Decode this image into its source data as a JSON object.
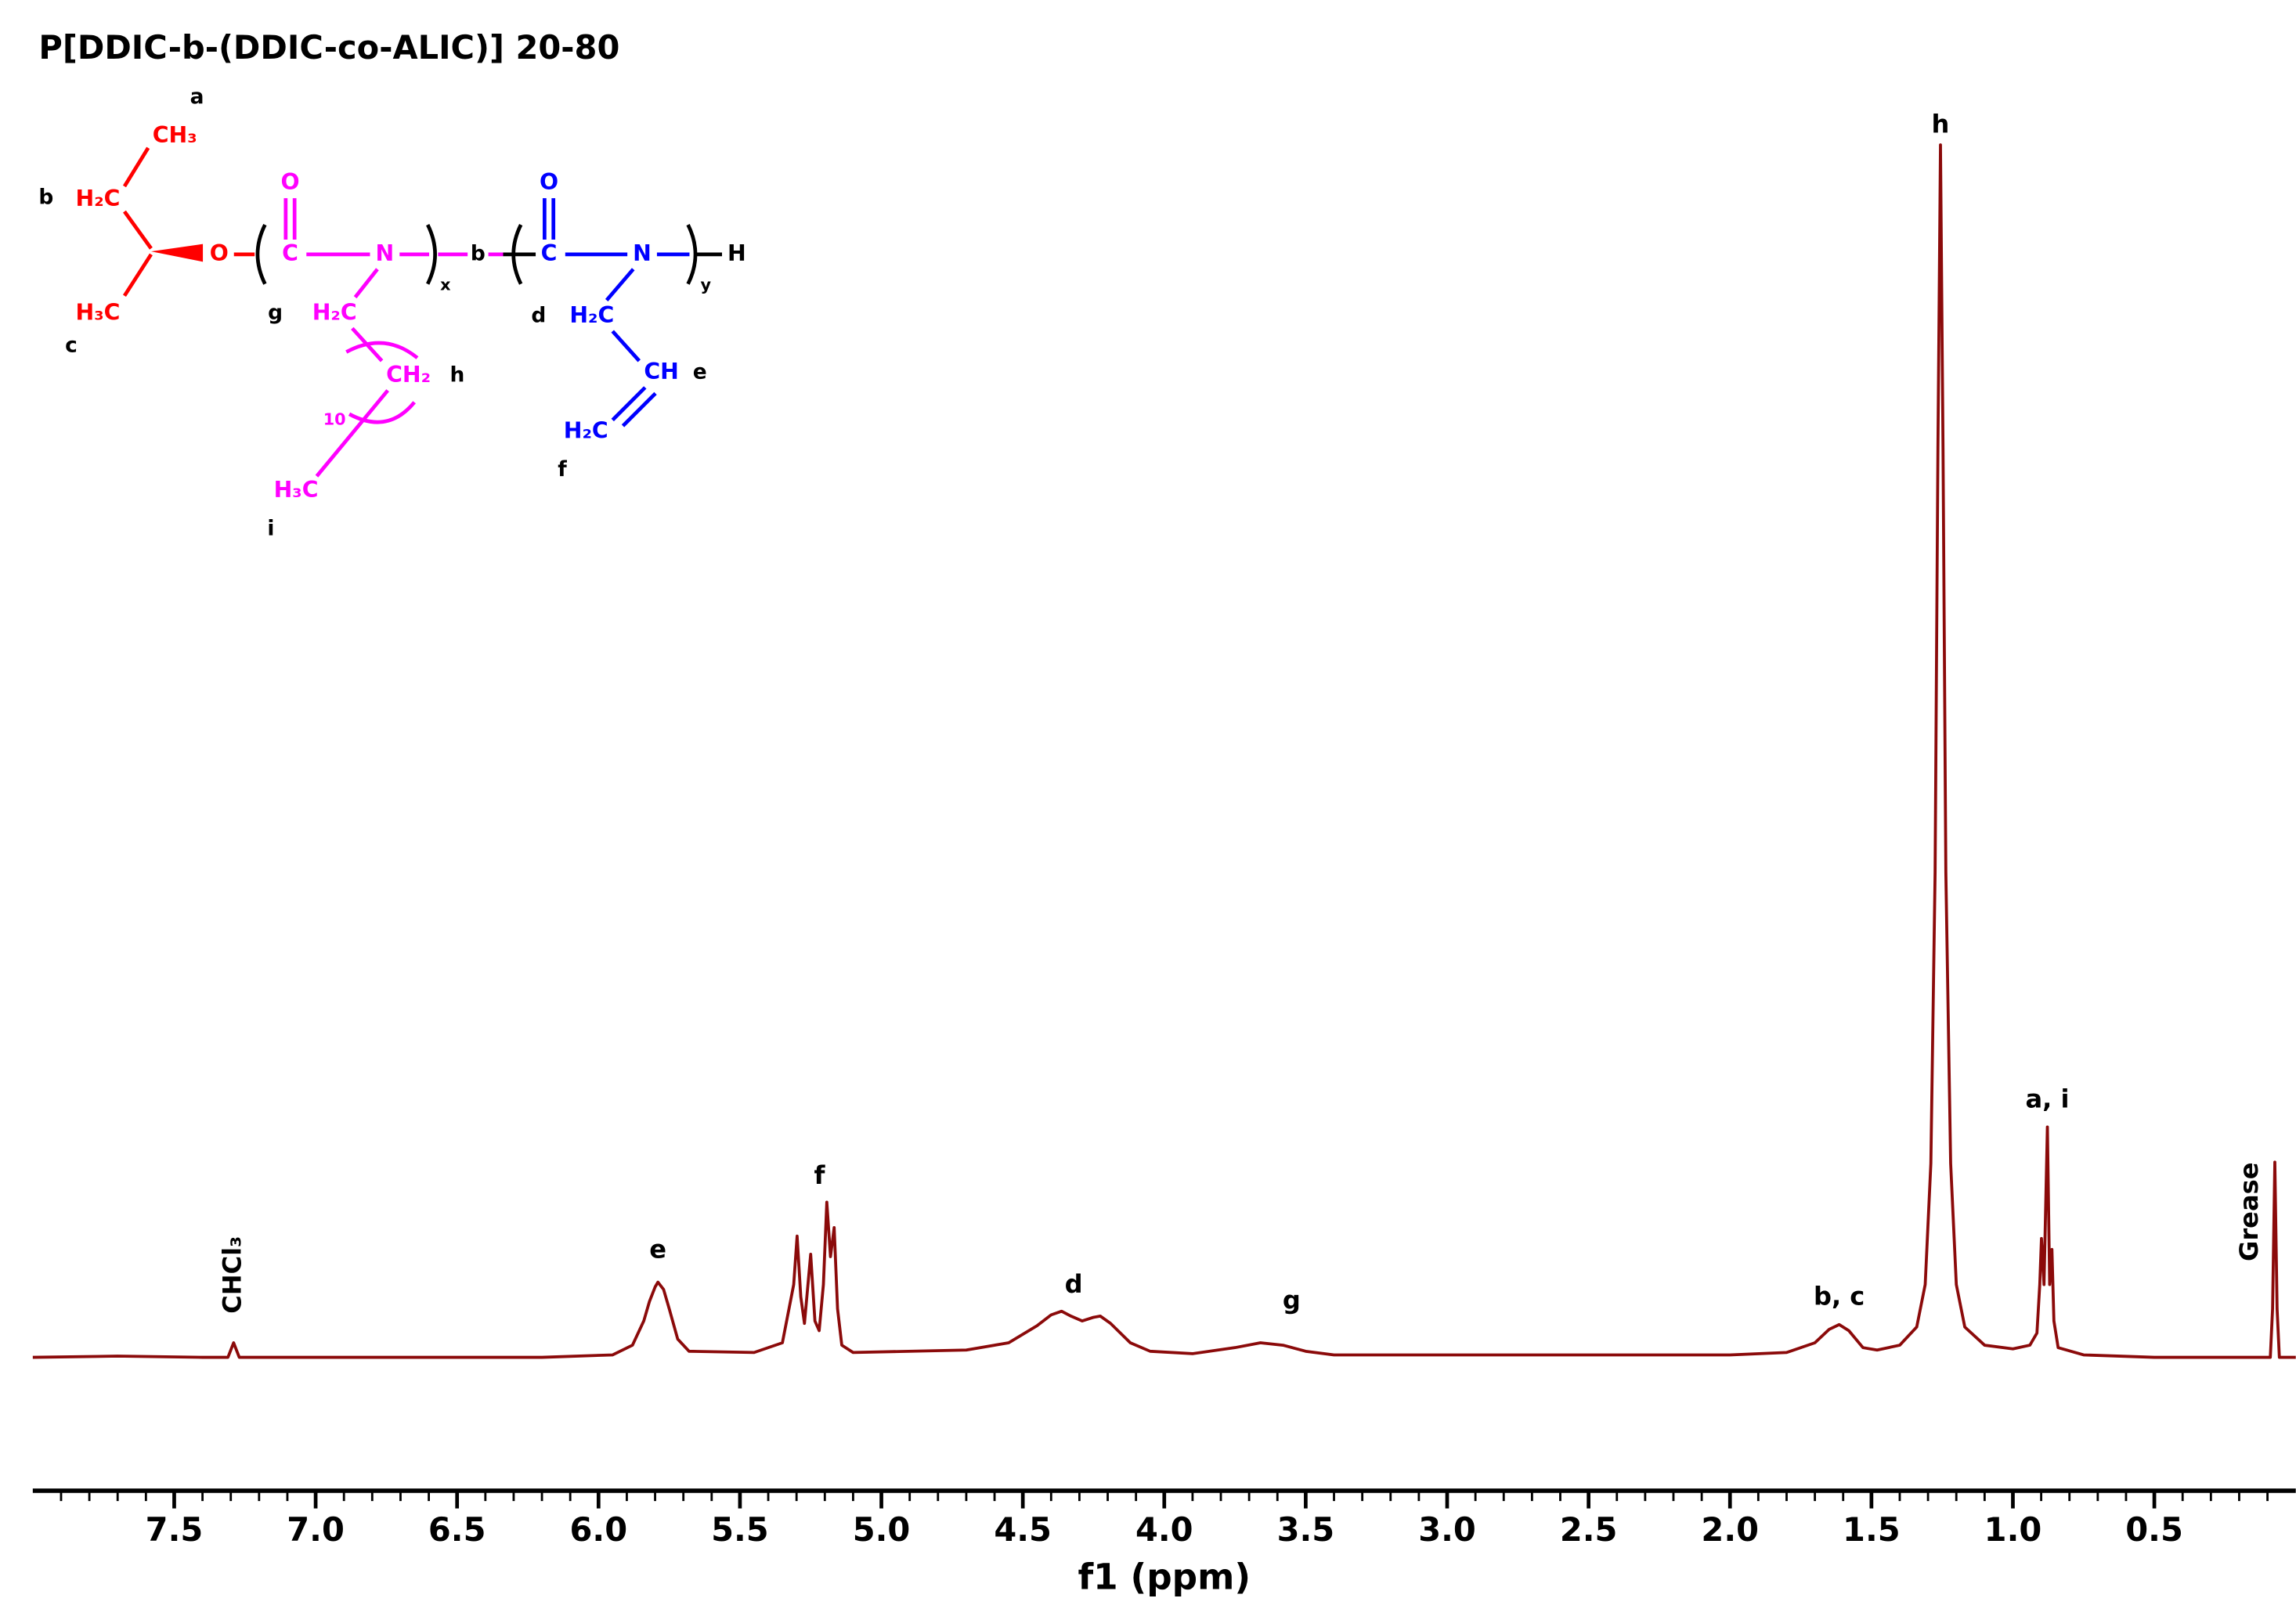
{
  "chart_data": {
    "type": "line",
    "title": "P[DDIC-b-(DDIC-co-ALIC)] 20-80",
    "xlabel": "f1 (ppm)",
    "xlim": [
      8.0,
      0.0
    ],
    "ylim": [
      -11,
      110
    ],
    "xticks": [
      7.5,
      {
        "value": 7,
        "label": "7.0"
      },
      6.5,
      {
        "value": 6,
        "label": "6.0"
      },
      5.5,
      {
        "value": 5,
        "label": "5.0"
      },
      4.5,
      {
        "value": 4,
        "label": "4.0"
      },
      3.5,
      {
        "value": 3,
        "label": "3.0"
      },
      2.5,
      {
        "value": 2,
        "label": "2.0"
      },
      1.5,
      {
        "value": 1,
        "label": "1.0"
      },
      0.5
    ],
    "xminorticks": [
      7.9,
      7.8,
      7.7,
      7.6,
      7.4,
      7.3,
      7.2,
      7.1,
      6.9,
      6.8,
      6.7,
      6.6,
      6.4,
      6.3,
      6.2,
      6.1,
      5.9,
      5.8,
      5.7,
      5.6,
      5.4,
      5.3,
      5.2,
      5.1,
      4.9,
      4.8,
      4.7,
      4.6,
      4.4,
      4.3,
      4.2,
      4.1,
      3.9,
      3.8,
      3.7,
      3.6,
      3.4,
      3.3,
      3.2,
      3.1,
      2.9,
      2.8,
      2.7,
      2.6,
      2.4,
      2.3,
      2.2,
      2.1,
      1.9,
      1.8,
      1.7,
      1.6,
      1.4,
      1.3,
      1.2,
      1.1,
      0.9,
      0.8,
      0.7,
      0.6,
      0.4,
      0.3,
      0.2,
      0.1
    ],
    "series": [
      {
        "color": "#8b0a0a",
        "x": [
          8.0,
          7.7,
          7.4,
          7.31,
          7.29,
          7.27,
          6.2,
          5.95,
          5.88,
          5.84,
          5.82,
          5.8,
          5.79,
          5.77,
          5.75,
          5.72,
          5.68,
          5.45,
          5.35,
          5.31,
          5.298,
          5.285,
          5.272,
          5.25,
          5.235,
          5.22,
          5.205,
          5.193,
          5.18,
          5.167,
          5.155,
          5.14,
          5.1,
          4.7,
          4.55,
          4.45,
          4.4,
          4.363,
          4.33,
          4.29,
          4.25,
          4.226,
          4.19,
          4.12,
          4.05,
          3.9,
          3.75,
          3.66,
          3.58,
          3.5,
          3.4,
          2.0,
          1.8,
          1.7,
          1.65,
          1.614,
          1.58,
          1.53,
          1.48,
          1.4,
          1.34,
          1.31,
          1.29,
          1.275,
          1.265,
          1.256,
          1.247,
          1.237,
          1.22,
          1.2,
          1.17,
          1.1,
          1.0,
          0.94,
          0.915,
          0.905,
          0.899,
          0.89,
          0.878,
          0.87,
          0.862,
          0.855,
          0.84,
          0.75,
          0.5,
          0.09,
          0.082,
          0.074,
          0.066,
          0.058,
          0.0
        ],
        "values": [
          0,
          0.1,
          0,
          0,
          1.2,
          0,
          0,
          0.2,
          1,
          3,
          4.6,
          5.8,
          6.2,
          5.6,
          4,
          1.5,
          0.5,
          0.4,
          1.2,
          6,
          10,
          5,
          2.8,
          8.5,
          3,
          2.2,
          6,
          12.8,
          8.3,
          10.7,
          4,
          1,
          0.4,
          0.6,
          1.2,
          2.6,
          3.5,
          3.8,
          3.4,
          3.0,
          3.3,
          3.4,
          2.8,
          1.2,
          0.5,
          0.3,
          0.8,
          1.2,
          1.0,
          0.5,
          0.2,
          0.2,
          0.4,
          1.2,
          2.3,
          2.7,
          2.2,
          0.8,
          0.6,
          1.0,
          2.5,
          6,
          16,
          40,
          75,
          100,
          75,
          40,
          16,
          6,
          2.5,
          1,
          0.7,
          1,
          2,
          6,
          9.8,
          6,
          19,
          6,
          8.9,
          3,
          0.8,
          0.2,
          0,
          0,
          4,
          16.1,
          4,
          0,
          0
        ]
      }
    ],
    "annotations": [
      {
        "text": "CHCl₃",
        "x": 7.29,
        "y": 6.8,
        "orientation": "vertical"
      },
      {
        "text": "e",
        "x": 5.79,
        "y": 8.8
      },
      {
        "text": "f",
        "x": 5.219,
        "y": 14.9
      },
      {
        "text": "d",
        "x": 4.32,
        "y": 5.9
      },
      {
        "text": "g",
        "x": 3.55,
        "y": 4.6
      },
      {
        "text": "b, c",
        "x": 1.614,
        "y": 4.9
      },
      {
        "text": "h",
        "x": 1.256,
        "y": 101.6
      },
      {
        "text": "a, i",
        "x": 0.878,
        "y": 21.2
      },
      {
        "text": "Grease",
        "x": 0.16,
        "y": 12.0,
        "orientation": "vertical"
      }
    ]
  },
  "structure": {
    "atoms": [
      "CH₃",
      "H₂C",
      "H₃C",
      "O",
      "O",
      "C",
      "N",
      "H₂C",
      "CH₂",
      "10",
      "H₃C",
      "O",
      "C",
      "N",
      "H₂C",
      "CH",
      "H₂C",
      "H"
    ],
    "labels": [
      "a",
      "b",
      "c",
      "g",
      "x",
      "b",
      "h",
      "i",
      "d",
      "y",
      "e",
      "f"
    ]
  }
}
